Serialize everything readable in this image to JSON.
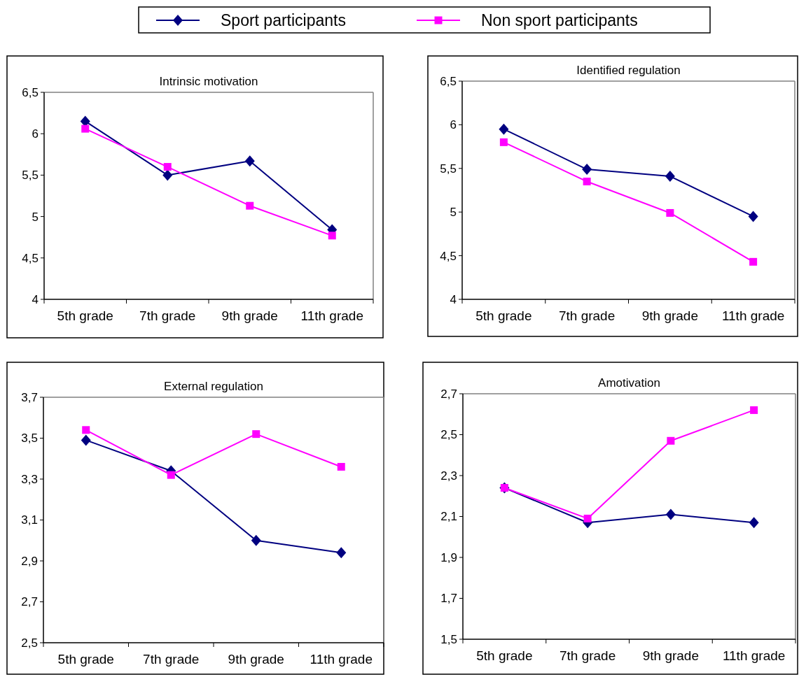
{
  "chart_data": [
    {
      "type": "line",
      "title": "Intrinsic motivation",
      "categories": [
        "5th grade",
        "7th grade",
        "9th grade",
        "11th grade"
      ],
      "legend": "top",
      "grid": false,
      "line_style": "solid",
      "ylim": [
        4,
        6.5
      ],
      "yticks": [
        4,
        {
          "value": 4.5,
          "label": "4,5"
        },
        5,
        {
          "value": 5.5,
          "label": "5,5"
        },
        6,
        {
          "value": 6.5,
          "label": "6,5"
        }
      ],
      "series": [
        {
          "name": "Sport participants",
          "color": "#000080",
          "marker": "diamond",
          "values": [
            6.15,
            5.5,
            5.67,
            4.84
          ]
        },
        {
          "name": "Non sport participants",
          "color": "#ff00ff",
          "marker": "square",
          "values": [
            6.06,
            5.6,
            5.13,
            4.77
          ]
        }
      ]
    },
    {
      "type": "line",
      "title": "Identified regulation",
      "categories": [
        "5th grade",
        "7th grade",
        "9th grade",
        "11th grade"
      ],
      "grid": false,
      "line_style": "solid",
      "ylim": [
        4,
        6.5
      ],
      "yticks": [
        4,
        {
          "value": 4.5,
          "label": "4,5"
        },
        5,
        {
          "value": 5.5,
          "label": "5,5"
        },
        6,
        {
          "value": 6.5,
          "label": "6,5"
        }
      ],
      "series": [
        {
          "color": "#000080",
          "marker": "diamond",
          "values": [
            5.95,
            5.49,
            5.41,
            4.95
          ]
        },
        {
          "color": "#ff00ff",
          "marker": "square",
          "values": [
            5.8,
            5.35,
            4.99,
            4.43
          ]
        }
      ]
    },
    {
      "type": "line",
      "title": "External regulation",
      "categories": [
        "5th grade",
        "7th grade",
        "9th grade",
        "11th grade"
      ],
      "grid": false,
      "line_style": "solid",
      "ylim": [
        2.5,
        3.7
      ],
      "yticks": [
        {
          "value": 2.5,
          "label": "2,5"
        },
        {
          "value": 2.7,
          "label": "2,7"
        },
        {
          "value": 2.9,
          "label": "2,9"
        },
        {
          "value": 3.1,
          "label": "3,1"
        },
        {
          "value": 3.3,
          "label": "3,3"
        },
        {
          "value": 3.5,
          "label": "3,5"
        },
        {
          "value": 3.7,
          "label": "3,7"
        }
      ],
      "series": [
        {
          "color": "#000080",
          "marker": "diamond",
          "values": [
            3.49,
            3.34,
            3.0,
            2.94
          ]
        },
        {
          "color": "#ff00ff",
          "marker": "square",
          "values": [
            3.54,
            3.32,
            3.52,
            3.36
          ]
        }
      ]
    },
    {
      "type": "line",
      "title": "Amotivation",
      "categories": [
        "5th grade",
        "7th grade",
        "9th grade",
        "11th grade"
      ],
      "grid": false,
      "line_style": "solid",
      "ylim": [
        1.5,
        2.7
      ],
      "yticks": [
        {
          "value": 1.5,
          "label": "1,5"
        },
        {
          "value": 1.7,
          "label": "1,7"
        },
        {
          "value": 1.9,
          "label": "1,9"
        },
        {
          "value": 2.1,
          "label": "2,1"
        },
        {
          "value": 2.3,
          "label": "2,3"
        },
        {
          "value": 2.5,
          "label": "2,5"
        },
        {
          "value": 2.7,
          "label": "2,7"
        }
      ],
      "series": [
        {
          "color": "#000080",
          "marker": "diamond",
          "values": [
            2.24,
            2.07,
            2.11,
            2.07
          ]
        },
        {
          "color": "#ff00ff",
          "marker": "square",
          "values": [
            2.24,
            2.09,
            2.47,
            2.62
          ]
        }
      ]
    }
  ]
}
